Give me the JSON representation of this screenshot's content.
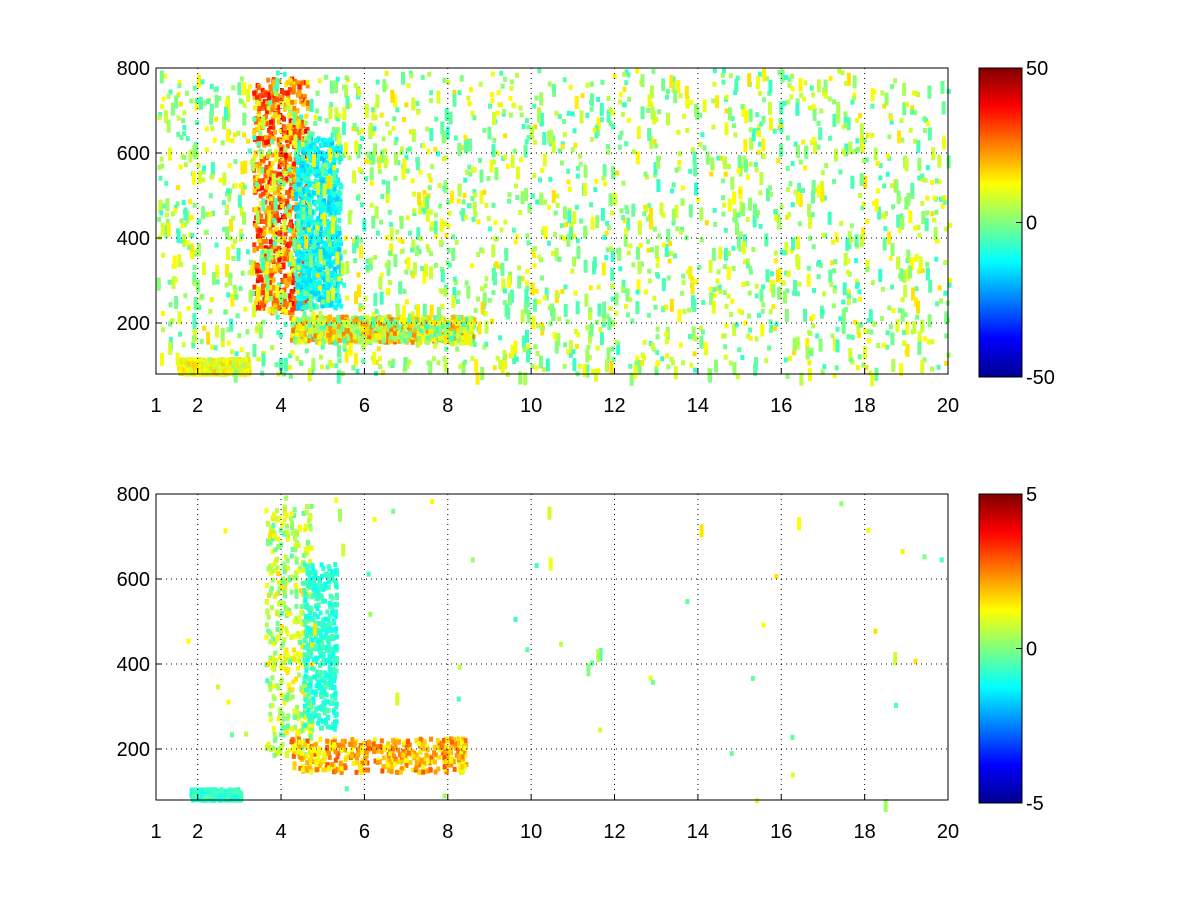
{
  "chart_data": [
    {
      "type": "heatmap",
      "title": "",
      "xlabel": "",
      "ylabel": "",
      "xlim": [
        1,
        20
      ],
      "ylim": [
        80,
        800
      ],
      "x_ticks": [
        1,
        2,
        4,
        6,
        8,
        10,
        12,
        14,
        16,
        18,
        20
      ],
      "y_ticks": [
        200,
        400,
        600,
        800
      ],
      "grid": true,
      "colormap": "jet",
      "colorbar": {
        "min": -50,
        "max": 50,
        "ticks": [
          50,
          0,
          -50
        ],
        "location": "right"
      },
      "background_color": "#ffffff",
      "features": [
        {
          "x": [
            3.3,
            4.6
          ],
          "y": [
            230,
            780
          ],
          "sign": "positive",
          "value": 32
        },
        {
          "x": [
            4.3,
            5.4
          ],
          "y": [
            240,
            640
          ],
          "sign": "negative",
          "value": -15
        },
        {
          "x": [
            4.2,
            8.6
          ],
          "y": [
            160,
            220
          ],
          "sign": "mixed",
          "value": 25
        },
        {
          "x": [
            1.5,
            3.2
          ],
          "y": [
            85,
            120
          ],
          "sign": "positive",
          "value": 15
        }
      ],
      "noise_density": "high"
    },
    {
      "type": "heatmap",
      "title": "",
      "xlabel": "",
      "ylabel": "",
      "xlim": [
        1,
        20
      ],
      "ylim": [
        80,
        800
      ],
      "x_ticks": [
        1,
        2,
        4,
        6,
        8,
        10,
        12,
        14,
        16,
        18,
        20
      ],
      "y_ticks": [
        200,
        400,
        600,
        800
      ],
      "grid": true,
      "colormap": "jet",
      "colorbar": {
        "min": -5,
        "max": 5,
        "ticks": [
          5,
          0,
          -5
        ],
        "location": "right"
      },
      "background_color": "#ffffff",
      "features": [
        {
          "x": [
            3.6,
            4.7
          ],
          "y": [
            190,
            780
          ],
          "sign": "mixed",
          "value": 1.5
        },
        {
          "x": [
            4.5,
            5.3
          ],
          "y": [
            250,
            640
          ],
          "sign": "negative",
          "value": -1
        },
        {
          "x": [
            4.2,
            8.4
          ],
          "y": [
            150,
            230
          ],
          "sign": "positive",
          "value": 2.5
        },
        {
          "x": [
            1.8,
            3.0
          ],
          "y": [
            85,
            110
          ],
          "sign": "negative",
          "value": -1
        }
      ],
      "noise_density": "low"
    }
  ]
}
